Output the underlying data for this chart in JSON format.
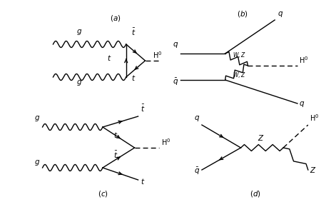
{
  "bg_color": "#ffffff",
  "lw": 1.0,
  "fi": 7.5
}
